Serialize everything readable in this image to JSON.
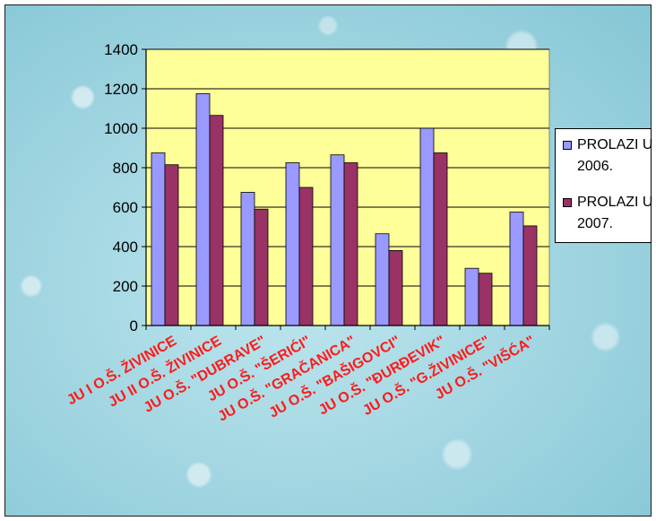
{
  "chart_data": {
    "type": "bar",
    "categories": [
      "JU I O.Š. ŽIVINICE",
      "JU II O.Š. ŽIVINICE",
      "JU O.Š. \"DUBRAVE\"",
      "JU O.Š. \"ŠERIĆI\"",
      "JU O.Š. \"GRAČANICA\"",
      "JU O.Š. \"BAŠIGOVCI\"",
      "JU O.Š. \"ĐURĐEVIK\"",
      "JU O.Š. \"G.ŽIVINICE\"",
      "JU O.Š. \"VIŠĆA\""
    ],
    "series": [
      {
        "name": "PROLAZI U 2006.",
        "values": [
          875,
          1175,
          675,
          825,
          865,
          465,
          1000,
          290,
          575
        ],
        "color": "#9999ff"
      },
      {
        "name": "PROLAZI U 2007.",
        "values": [
          815,
          1065,
          590,
          700,
          825,
          380,
          875,
          265,
          505
        ],
        "color": "#993366"
      }
    ],
    "yticks": [
      0,
      200,
      400,
      600,
      800,
      1000,
      1200,
      1400
    ],
    "ylim": [
      0,
      1400
    ],
    "grid": true,
    "plot_background": "#ffff99",
    "label_color": "#ff1a1a",
    "legend_position": "right"
  }
}
